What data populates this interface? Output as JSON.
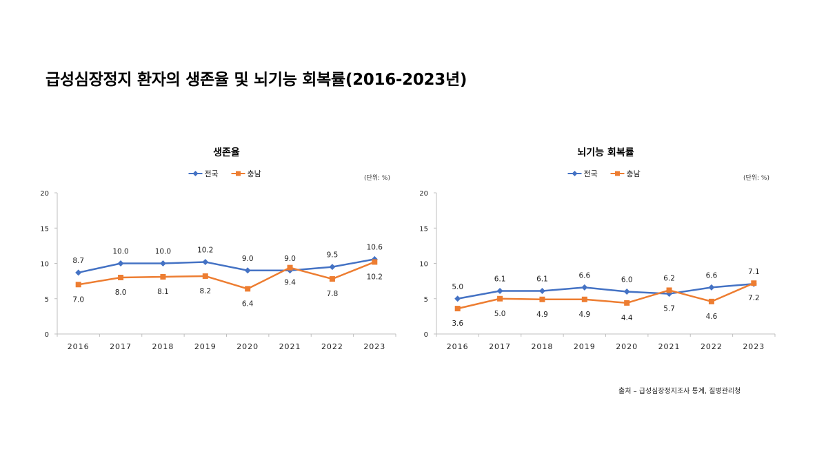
{
  "page": {
    "title": "급성심장정지 환자의 생존율 및 뇌기능 회복률(2016-2023년)",
    "source": "출처 – 급성심장정지조사 통계, 질병관리청"
  },
  "colors": {
    "national": "#4472C4",
    "chungnam": "#ED7D31",
    "axis": "#bfbfbf"
  },
  "chart_data": [
    {
      "type": "line",
      "title": "생존율",
      "unit_note": "(단위: %)",
      "categories": [
        "2016",
        "2017",
        "2018",
        "2019",
        "2020",
        "2021",
        "2022",
        "2023"
      ],
      "ylim": [
        0,
        20
      ],
      "yticks": [
        "0",
        "5",
        "10",
        "15",
        "20"
      ],
      "series": [
        {
          "name": "전국",
          "marker": "diamond",
          "values": [
            8.7,
            10.0,
            10.0,
            10.2,
            9.0,
            9.0,
            9.5,
            10.6
          ],
          "labels": [
            "8.7",
            "10.0",
            "10.0",
            "10.2",
            "9.0",
            "9.0",
            "9.5",
            "10.6"
          ]
        },
        {
          "name": "충남",
          "marker": "square",
          "values": [
            7.0,
            8.0,
            8.1,
            8.2,
            6.4,
            9.4,
            7.8,
            10.2
          ],
          "labels": [
            "7.0",
            "8.0",
            "8.1",
            "8.2",
            "6.4",
            "9.4",
            "7.8",
            "10.2"
          ]
        }
      ],
      "legend": "top-center",
      "grid": false
    },
    {
      "type": "line",
      "title": "뇌기능 회복률",
      "unit_note": "(단위: %)",
      "categories": [
        "2016",
        "2017",
        "2018",
        "2019",
        "2020",
        "2021",
        "2022",
        "2023"
      ],
      "ylim": [
        0,
        20
      ],
      "yticks": [
        "0",
        "5",
        "10",
        "15",
        "20"
      ],
      "series": [
        {
          "name": "전국",
          "marker": "diamond",
          "values": [
            5.0,
            6.1,
            6.1,
            6.6,
            6.0,
            5.7,
            6.6,
            7.1
          ],
          "labels": [
            "5.0",
            "6.1",
            "6.1",
            "6.6",
            "6.0",
            "5.7",
            "6.6",
            "7.1"
          ]
        },
        {
          "name": "충남",
          "marker": "square",
          "values": [
            3.6,
            5.0,
            4.9,
            4.9,
            4.4,
            6.2,
            4.6,
            7.2
          ],
          "labels": [
            "3.6",
            "5.0",
            "4.9",
            "4.9",
            "4.4",
            "6.2",
            "4.6",
            "7.2"
          ]
        }
      ],
      "legend": "top-center",
      "grid": false
    }
  ]
}
